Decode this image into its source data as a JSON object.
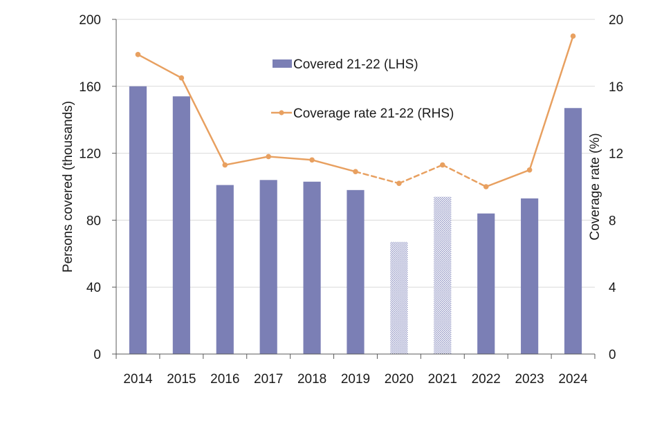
{
  "chart_data": {
    "type": "bar+line",
    "categories": [
      "2014",
      "2015",
      "2016",
      "2017",
      "2018",
      "2019",
      "2020",
      "2021",
      "2022",
      "2023",
      "2024"
    ],
    "series": [
      {
        "name": "Covered 21-22 (LHS)",
        "type": "bar",
        "axis": "left",
        "color": "#7b7fb5",
        "values": [
          160,
          154,
          101,
          104,
          103,
          98,
          67,
          94,
          84,
          93,
          147
        ],
        "hatched": [
          "2020",
          "2021"
        ]
      },
      {
        "name": "Coverage rate 21-22 (RHS)",
        "type": "line",
        "axis": "right",
        "color": "#e8a060",
        "values": [
          17.9,
          16.5,
          11.3,
          11.8,
          11.6,
          10.9,
          10.2,
          11.3,
          10.0,
          11.0,
          19.0
        ],
        "dashed_segments": [
          "2019-2020",
          "2020-2021",
          "2021-2022"
        ]
      }
    ],
    "ylabel_left": "Persons covered (thousands)",
    "ylabel_right": "Coverage rate (%)",
    "ylim_left": [
      0,
      200
    ],
    "ylim_right": [
      0,
      20
    ],
    "yticks_left": [
      "0",
      "40",
      "80",
      "120",
      "160",
      "200"
    ],
    "yticks_right": [
      "0",
      "4",
      "8",
      "12",
      "16",
      "20"
    ],
    "grid": true,
    "legend_position": "top-center"
  }
}
